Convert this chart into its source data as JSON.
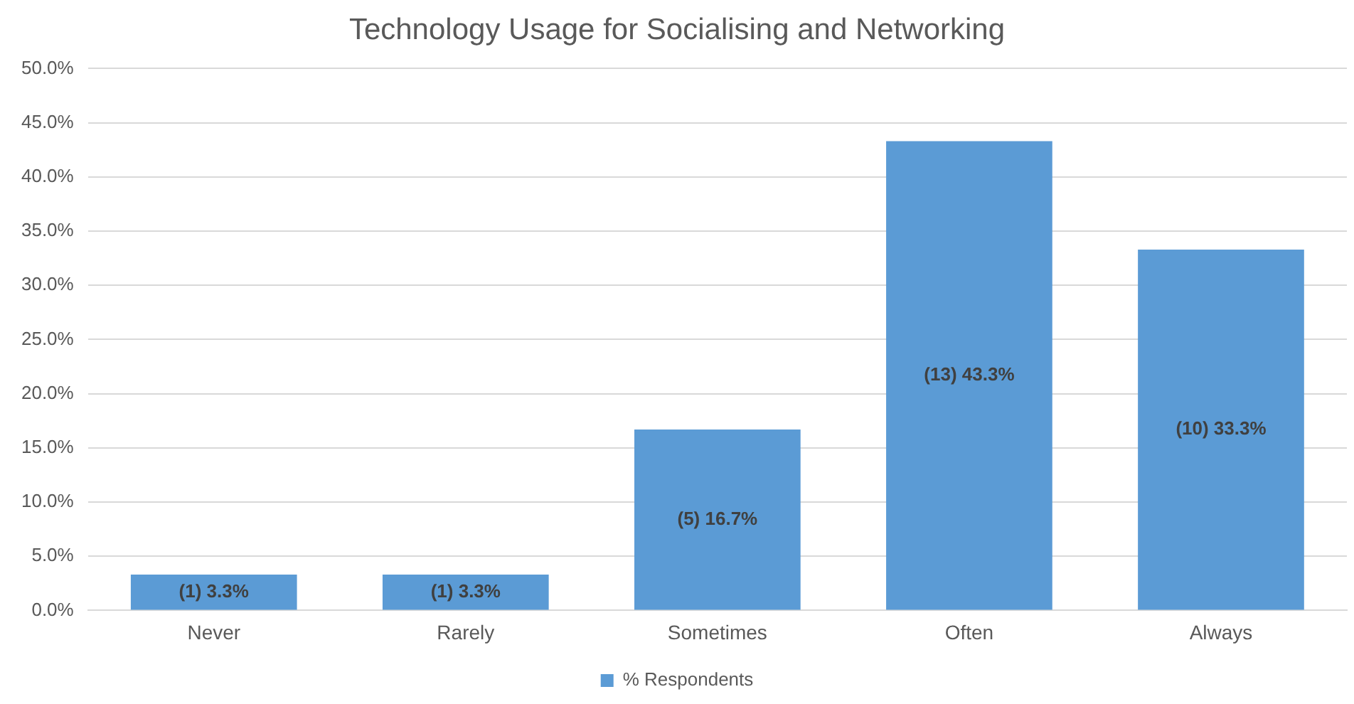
{
  "chart_data": {
    "type": "bar",
    "title": "Technology Usage for Socialising and Networking",
    "categories": [
      "Never",
      "Rarely",
      "Sometimes",
      "Often",
      "Always"
    ],
    "series": [
      {
        "name": "% Respondents",
        "color": "#5b9bd5",
        "values": [
          3.3,
          3.3,
          16.7,
          43.3,
          33.3
        ],
        "value_labels": [
          "(1) 3.3%",
          "(1) 3.3%",
          "(5) 16.7%",
          "(13) 43.3%",
          "(10) 33.3%"
        ]
      }
    ],
    "ylim": [
      0,
      50
    ],
    "yticks": [
      {
        "value": 0,
        "label": "0.0%"
      },
      {
        "value": 5,
        "label": "5.0%"
      },
      {
        "value": 10,
        "label": "10.0%"
      },
      {
        "value": 15,
        "label": "15.0%"
      },
      {
        "value": 20,
        "label": "20.0%"
      },
      {
        "value": 25,
        "label": "25.0%"
      },
      {
        "value": 30,
        "label": "30.0%"
      },
      {
        "value": 35,
        "label": "35.0%"
      },
      {
        "value": 40,
        "label": "40.0%"
      },
      {
        "value": 45,
        "label": "45.0%"
      },
      {
        "value": 50,
        "label": "50.0%"
      }
    ],
    "grid": "y",
    "legend": "bottom"
  }
}
